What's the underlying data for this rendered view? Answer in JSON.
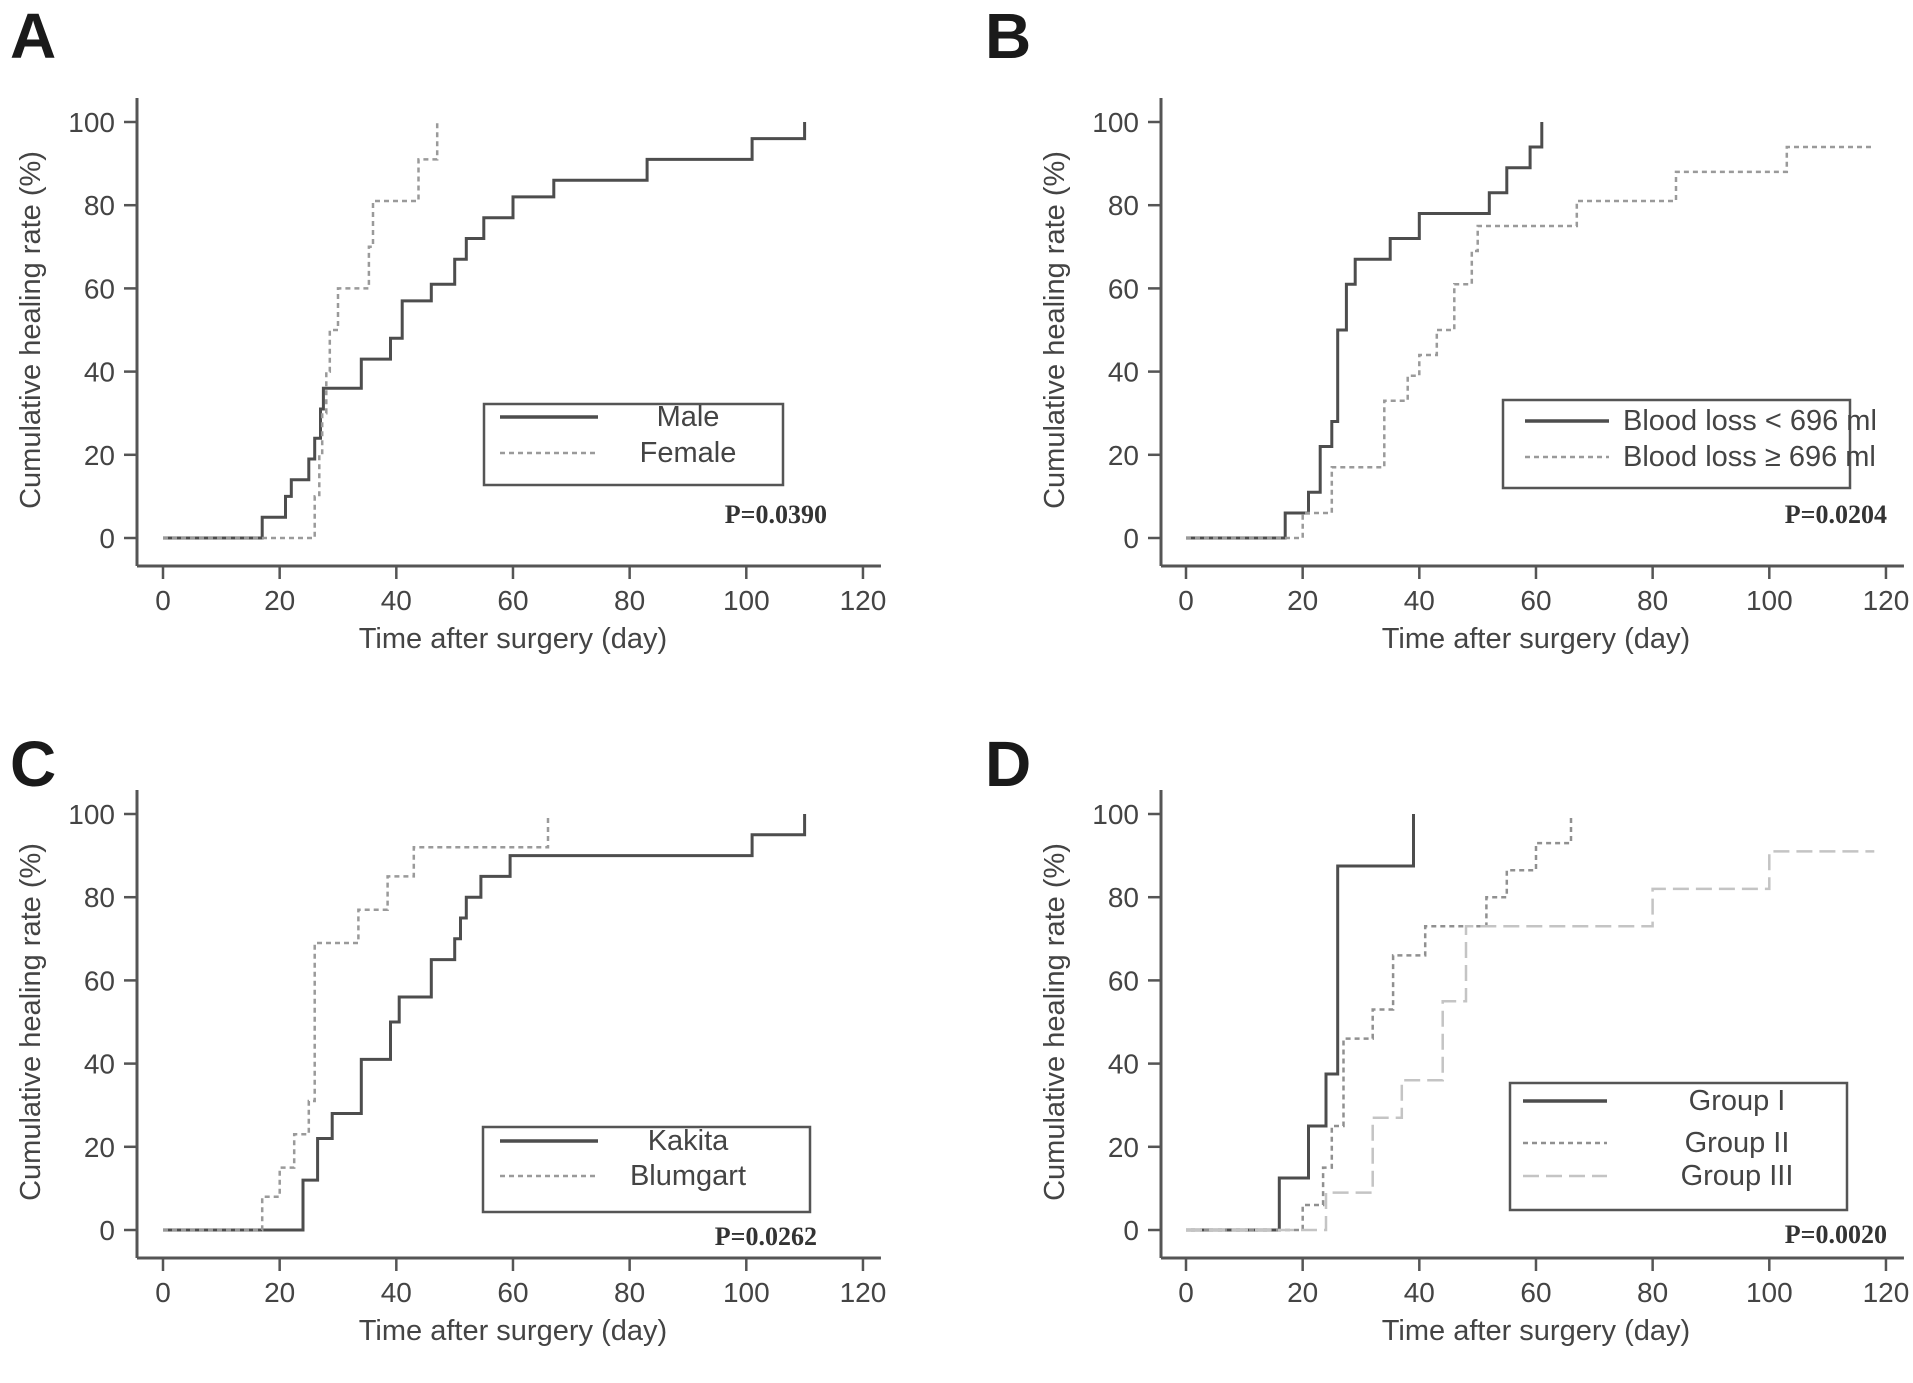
{
  "figure": {
    "background": "#ffffff",
    "axis_color": "#555555",
    "text_color": "#444444",
    "pvalue_color": "#333333"
  },
  "chart_data": [
    {
      "panel": "A",
      "type": "line",
      "subtype": "kaplan-meier-step",
      "xlabel": "Time after surgery (day)",
      "ylabel": "Cumulative healing rate (%)",
      "xlim": [
        0,
        120
      ],
      "ylim": [
        0,
        100
      ],
      "xticks": [
        0,
        20,
        40,
        60,
        80,
        100,
        120
      ],
      "yticks": [
        0,
        20,
        40,
        60,
        80,
        100
      ],
      "grid": false,
      "legend_position": "lower right",
      "p_value": "P=0.0390",
      "series": [
        {
          "name": "Male",
          "style": "solid",
          "color": "#4d4d4d",
          "points": [
            [
              0,
              0
            ],
            [
              17,
              0
            ],
            [
              17,
              5
            ],
            [
              21,
              5
            ],
            [
              21,
              10
            ],
            [
              22,
              10
            ],
            [
              22,
              14
            ],
            [
              25,
              14
            ],
            [
              25,
              19
            ],
            [
              26,
              19
            ],
            [
              26,
              24
            ],
            [
              27,
              24
            ],
            [
              27,
              31
            ],
            [
              27.5,
              31
            ],
            [
              27.5,
              36
            ],
            [
              34,
              36
            ],
            [
              34,
              43
            ],
            [
              39,
              43
            ],
            [
              39,
              48
            ],
            [
              41,
              48
            ],
            [
              41,
              57
            ],
            [
              46,
              57
            ],
            [
              46,
              61
            ],
            [
              50,
              61
            ],
            [
              50,
              67
            ],
            [
              52,
              67
            ],
            [
              52,
              72
            ],
            [
              55,
              72
            ],
            [
              55,
              77
            ],
            [
              60,
              77
            ],
            [
              60,
              82
            ],
            [
              67,
              82
            ],
            [
              67,
              86
            ],
            [
              83,
              86
            ],
            [
              83,
              91
            ],
            [
              101,
              91
            ],
            [
              101,
              96
            ],
            [
              110,
              96
            ],
            [
              110,
              100
            ]
          ]
        },
        {
          "name": "Female",
          "style": "dotted",
          "color": "#9a9a9a",
          "points": [
            [
              0,
              0
            ],
            [
              26,
              0
            ],
            [
              26,
              10
            ],
            [
              26.8,
              10
            ],
            [
              26.8,
              20
            ],
            [
              27.3,
              20
            ],
            [
              27.3,
              30
            ],
            [
              28,
              30
            ],
            [
              28,
              40
            ],
            [
              28.6,
              40
            ],
            [
              28.6,
              50
            ],
            [
              30,
              50
            ],
            [
              30,
              60
            ],
            [
              35.3,
              60
            ],
            [
              35.3,
              70
            ],
            [
              36,
              70
            ],
            [
              36,
              81
            ],
            [
              43.8,
              81
            ],
            [
              43.8,
              91
            ],
            [
              47,
              91
            ],
            [
              47,
              100
            ]
          ]
        }
      ]
    },
    {
      "panel": "B",
      "type": "line",
      "subtype": "kaplan-meier-step",
      "xlabel": "Time after surgery (day)",
      "ylabel": "Cumulative healing rate (%)",
      "xlim": [
        0,
        120
      ],
      "ylim": [
        0,
        100
      ],
      "xticks": [
        0,
        20,
        40,
        60,
        80,
        100,
        120
      ],
      "yticks": [
        0,
        20,
        40,
        60,
        80,
        100
      ],
      "grid": false,
      "legend_position": "lower right",
      "p_value": "P=0.0204",
      "series": [
        {
          "name": "Blood loss < 696 ml",
          "style": "solid",
          "color": "#4d4d4d",
          "points": [
            [
              0,
              0
            ],
            [
              17,
              0
            ],
            [
              17,
              6
            ],
            [
              21,
              6
            ],
            [
              21,
              11
            ],
            [
              23,
              11
            ],
            [
              23,
              22
            ],
            [
              25,
              22
            ],
            [
              25,
              28
            ],
            [
              26,
              28
            ],
            [
              26,
              50
            ],
            [
              27.5,
              50
            ],
            [
              27.5,
              61
            ],
            [
              29,
              61
            ],
            [
              29,
              67
            ],
            [
              35,
              67
            ],
            [
              35,
              72
            ],
            [
              40,
              72
            ],
            [
              40,
              78
            ],
            [
              52,
              78
            ],
            [
              52,
              83
            ],
            [
              55,
              83
            ],
            [
              55,
              89
            ],
            [
              59,
              89
            ],
            [
              59,
              94
            ],
            [
              61,
              94
            ],
            [
              61,
              100
            ]
          ]
        },
        {
          "name": "Blood loss ≥ 696 ml",
          "style": "dotted",
          "color": "#9a9a9a",
          "points": [
            [
              0,
              0
            ],
            [
              20,
              0
            ],
            [
              20,
              6
            ],
            [
              25,
              6
            ],
            [
              25,
              17
            ],
            [
              34,
              17
            ],
            [
              34,
              33
            ],
            [
              38,
              33
            ],
            [
              38,
              39
            ],
            [
              40,
              39
            ],
            [
              40,
              44
            ],
            [
              43,
              44
            ],
            [
              43,
              50
            ],
            [
              46,
              50
            ],
            [
              46,
              61
            ],
            [
              49,
              61
            ],
            [
              49,
              69
            ],
            [
              50,
              69
            ],
            [
              50,
              75
            ],
            [
              67,
              75
            ],
            [
              67,
              81
            ],
            [
              84,
              81
            ],
            [
              84,
              88
            ],
            [
              103,
              88
            ],
            [
              103,
              94
            ],
            [
              118,
              94
            ]
          ]
        }
      ]
    },
    {
      "panel": "C",
      "type": "line",
      "subtype": "kaplan-meier-step",
      "xlabel": "Time after surgery (day)",
      "ylabel": "Cumulative healing rate (%)",
      "xlim": [
        0,
        120
      ],
      "ylim": [
        0,
        100
      ],
      "xticks": [
        0,
        20,
        40,
        60,
        80,
        100,
        120
      ],
      "yticks": [
        0,
        20,
        40,
        60,
        80,
        100
      ],
      "grid": false,
      "legend_position": "lower right",
      "p_value": "P=0.0262",
      "series": [
        {
          "name": "Kakita",
          "style": "solid",
          "color": "#4d4d4d",
          "points": [
            [
              0,
              0
            ],
            [
              24,
              0
            ],
            [
              24,
              12
            ],
            [
              26.5,
              12
            ],
            [
              26.5,
              22
            ],
            [
              29,
              22
            ],
            [
              29,
              28
            ],
            [
              34,
              28
            ],
            [
              34,
              41
            ],
            [
              39,
              41
            ],
            [
              39,
              50
            ],
            [
              40.5,
              50
            ],
            [
              40.5,
              56
            ],
            [
              46,
              56
            ],
            [
              46,
              65
            ],
            [
              50,
              65
            ],
            [
              50,
              70
            ],
            [
              51,
              70
            ],
            [
              51,
              75
            ],
            [
              52,
              75
            ],
            [
              52,
              80
            ],
            [
              54.5,
              80
            ],
            [
              54.5,
              85
            ],
            [
              59.5,
              85
            ],
            [
              59.5,
              90
            ],
            [
              101,
              90
            ],
            [
              101,
              95
            ],
            [
              110,
              95
            ],
            [
              110,
              100
            ]
          ]
        },
        {
          "name": "Blumgart",
          "style": "dotted",
          "color": "#9a9a9a",
          "points": [
            [
              0,
              0
            ],
            [
              17,
              0
            ],
            [
              17,
              8
            ],
            [
              20,
              8
            ],
            [
              20,
              15
            ],
            [
              22.5,
              15
            ],
            [
              22.5,
              23
            ],
            [
              25,
              23
            ],
            [
              25,
              31
            ],
            [
              26,
              31
            ],
            [
              26,
              69
            ],
            [
              33.5,
              69
            ],
            [
              33.5,
              77
            ],
            [
              38.5,
              77
            ],
            [
              38.5,
              85
            ],
            [
              43,
              85
            ],
            [
              43,
              92
            ],
            [
              66,
              92
            ],
            [
              66,
              100
            ]
          ]
        }
      ]
    },
    {
      "panel": "D",
      "type": "line",
      "subtype": "kaplan-meier-step",
      "xlabel": "Time after surgery (day)",
      "ylabel": "Cumulative healing rate (%)",
      "xlim": [
        0,
        120
      ],
      "ylim": [
        0,
        100
      ],
      "xticks": [
        0,
        20,
        40,
        60,
        80,
        100,
        120
      ],
      "yticks": [
        0,
        20,
        40,
        60,
        80,
        100
      ],
      "grid": false,
      "legend_position": "lower right",
      "p_value": "P=0.0020",
      "series": [
        {
          "name": "Group I",
          "style": "solid",
          "color": "#4d4d4d",
          "points": [
            [
              0,
              0
            ],
            [
              16,
              0
            ],
            [
              16,
              12.5
            ],
            [
              21,
              12.5
            ],
            [
              21,
              25
            ],
            [
              24,
              25
            ],
            [
              24,
              37.5
            ],
            [
              26,
              37.5
            ],
            [
              26,
              87.5
            ],
            [
              39,
              87.5
            ],
            [
              39,
              100
            ]
          ]
        },
        {
          "name": "Group II",
          "style": "dotted",
          "color": "#909090",
          "points": [
            [
              0,
              0
            ],
            [
              20,
              0
            ],
            [
              20,
              6
            ],
            [
              23.5,
              6
            ],
            [
              23.5,
              15
            ],
            [
              25,
              15
            ],
            [
              25,
              25
            ],
            [
              27,
              25
            ],
            [
              27,
              46
            ],
            [
              32,
              46
            ],
            [
              32,
              53
            ],
            [
              35.5,
              53
            ],
            [
              35.5,
              66
            ],
            [
              41,
              66
            ],
            [
              41,
              73
            ],
            [
              51.5,
              73
            ],
            [
              51.5,
              80
            ],
            [
              55,
              80
            ],
            [
              55,
              86.5
            ],
            [
              60,
              86.5
            ],
            [
              60,
              93
            ],
            [
              66,
              93
            ],
            [
              66,
              100
            ]
          ]
        },
        {
          "name": "Group III",
          "style": "longdash",
          "color": "#c4c4c4",
          "points": [
            [
              0,
              0
            ],
            [
              24,
              0
            ],
            [
              24,
              9
            ],
            [
              32,
              9
            ],
            [
              32,
              27
            ],
            [
              37,
              27
            ],
            [
              37,
              36
            ],
            [
              44,
              36
            ],
            [
              44,
              55
            ],
            [
              48,
              55
            ],
            [
              48,
              73
            ],
            [
              80,
              73
            ],
            [
              80,
              82
            ],
            [
              100,
              82
            ],
            [
              100,
              91
            ],
            [
              118,
              91
            ]
          ]
        }
      ]
    }
  ]
}
